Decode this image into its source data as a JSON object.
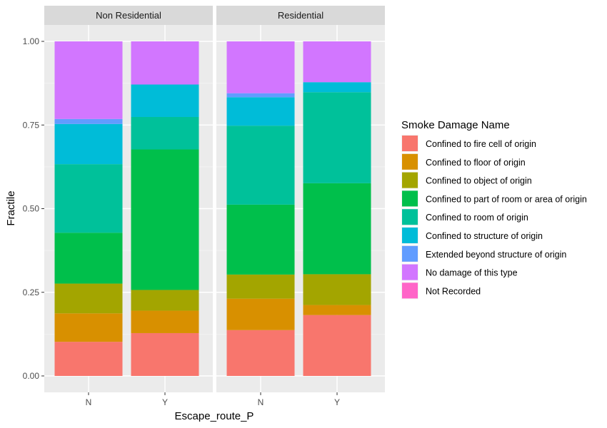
{
  "chart_data": {
    "type": "bar",
    "stacked": true,
    "facet_by": [
      "Non Residential",
      "Residential"
    ],
    "categories": [
      "N",
      "Y"
    ],
    "xlabel": "Escape_route_P",
    "ylabel": "Fractile",
    "ylim": [
      0,
      1
    ],
    "yticks": [
      "0.00",
      "0.25",
      "0.50",
      "0.75",
      "1.00"
    ],
    "legend_title": "Smoke Damage Name",
    "legend_position": "right",
    "grid": true,
    "series": [
      {
        "name": "Confined to fire cell of origin",
        "color": "#F8766D"
      },
      {
        "name": "Confined to floor of origin",
        "color": "#D89000"
      },
      {
        "name": "Confined to object of origin",
        "color": "#A3A500"
      },
      {
        "name": "Confined to part of room or area of origin",
        "color": "#00BF4B"
      },
      {
        "name": "Confined to room of origin",
        "color": "#00C19A"
      },
      {
        "name": "Confined to structure of origin",
        "color": "#00BCD8"
      },
      {
        "name": "Extended beyond structure of origin",
        "color": "#619CFF"
      },
      {
        "name": "No damage of this type",
        "color": "#D276FF"
      },
      {
        "name": "Not Recorded",
        "color": "#FF65C8"
      }
    ],
    "facets": [
      {
        "label": "Non Residential",
        "bars": [
          {
            "category": "N",
            "values": [
              0.102,
              0.085,
              0.089,
              0.152,
              0.205,
              0.12,
              0.015,
              0.232,
              0.0
            ]
          },
          {
            "category": "Y",
            "values": [
              0.128,
              0.067,
              0.062,
              0.42,
              0.097,
              0.097,
              0.0,
              0.129,
              0.0
            ]
          }
        ]
      },
      {
        "label": "Residential",
        "bars": [
          {
            "category": "N",
            "values": [
              0.137,
              0.094,
              0.072,
              0.209,
              0.236,
              0.085,
              0.012,
              0.155,
              0.0
            ]
          },
          {
            "category": "Y",
            "values": [
              0.182,
              0.03,
              0.092,
              0.272,
              0.272,
              0.03,
              0.0,
              0.122,
              0.0
            ]
          }
        ]
      }
    ]
  }
}
